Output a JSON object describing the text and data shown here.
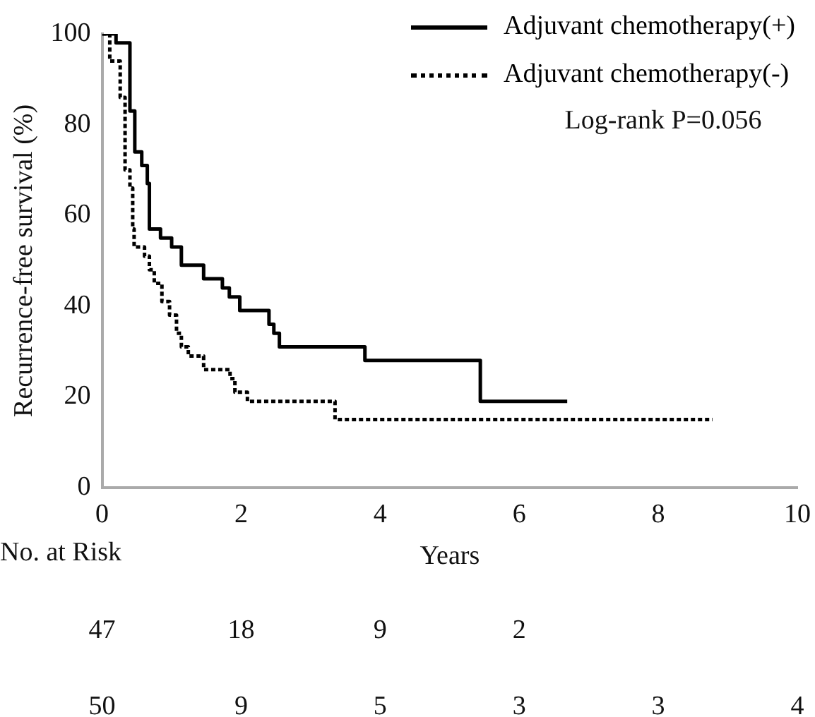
{
  "chart_data": {
    "type": "step",
    "ylabel": "Recurrence-free survival (%)",
    "xlabel": "Years",
    "xlim": [
      0,
      10
    ],
    "xticks": [
      0,
      2,
      4,
      6,
      8,
      10
    ],
    "ylim": [
      0,
      100
    ],
    "yticks": [
      0,
      20,
      40,
      60,
      80,
      100
    ],
    "grid": false,
    "legend": "top right",
    "annotations": [
      "Log-rank P=0.056",
      "No. at Risk",
      "47",
      "18",
      "9",
      "2",
      "50",
      "9",
      "5",
      "3",
      "3",
      "4"
    ],
    "series": [
      {
        "name": "Adjuvant chemotherapy(+)",
        "color": "#000000",
        "line_style": "solid",
        "x": [
          0,
          0.08,
          0.2,
          0.4,
          0.47,
          0.57,
          0.65,
          0.68,
          0.84,
          1.0,
          1.14,
          1.46,
          1.73,
          1.83,
          1.98,
          2.4,
          2.47,
          2.55,
          3.78,
          5.44,
          6.69
        ],
        "values": [
          100,
          100,
          98,
          83,
          74,
          71,
          67,
          57,
          55,
          53,
          49,
          46,
          44,
          42,
          39,
          36,
          34,
          31,
          28,
          19,
          19
        ]
      },
      {
        "name": "Adjuvant chemotherapy(-)",
        "color": "#000000",
        "line_style": "dotted",
        "x": [
          0,
          0.11,
          0.26,
          0.33,
          0.4,
          0.44,
          0.46,
          0.61,
          0.68,
          0.75,
          0.86,
          0.97,
          1.07,
          1.14,
          1.24,
          1.46,
          1.84,
          1.91,
          2.09,
          3.35,
          8.78
        ],
        "values": [
          100,
          94,
          86,
          70,
          66,
          57,
          53,
          51,
          48,
          45,
          41,
          38,
          34,
          31,
          29,
          26,
          24,
          21,
          19,
          15,
          15
        ]
      }
    ]
  }
}
